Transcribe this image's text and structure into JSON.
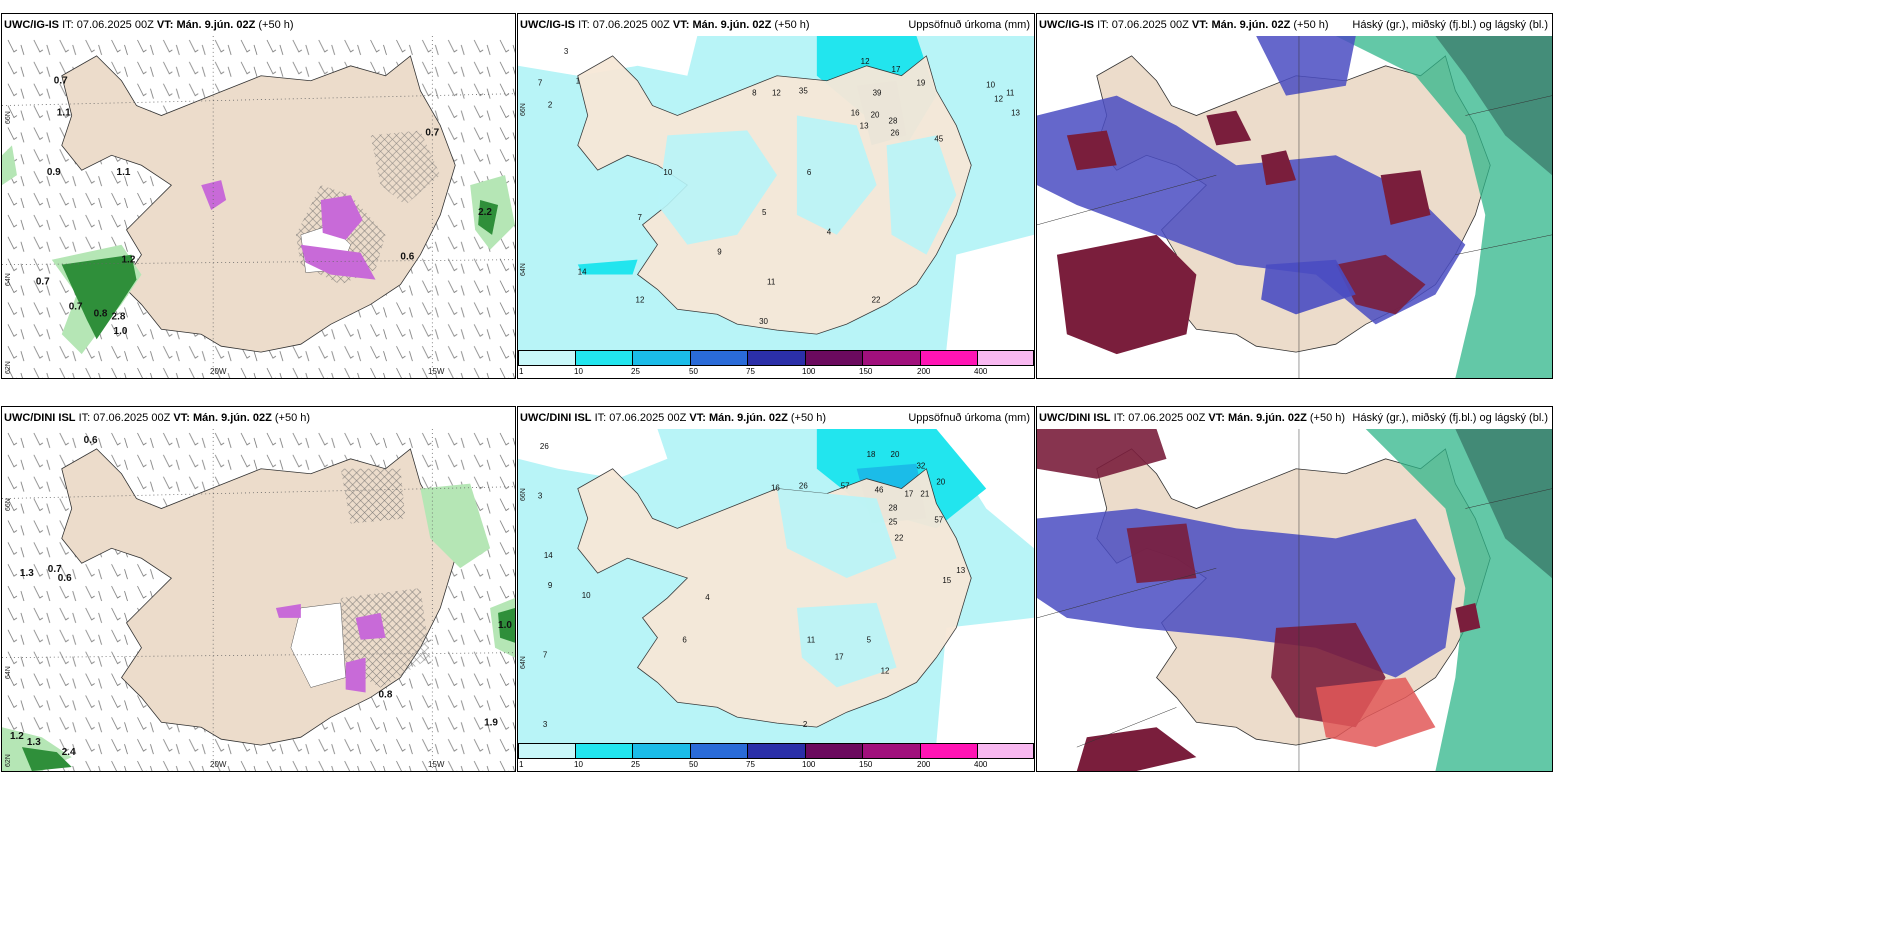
{
  "panels": [
    {
      "model": "UWC/IG-IS",
      "it_prefix": "IT:",
      "it": "07.06.2025 00Z",
      "vt_prefix": "VT:",
      "vt": "Mán. 9.jún. 02Z",
      "lead": "(+50 h)",
      "right_title": "",
      "grid_labels": {
        "lon_left": "20W",
        "lon_right": "15W",
        "lat_top": "66N",
        "lat_mid": "64N",
        "lat_bottom": "62N"
      },
      "values": [
        "0.7",
        "1.1",
        "1.2",
        "0.9",
        "0.7",
        "0.7",
        "1.1",
        "0.8",
        "2.8",
        "1.0",
        "0.7",
        "0.6",
        "2.2"
      ]
    },
    {
      "model": "UWC/IG-IS",
      "it_prefix": "IT:",
      "it": "07.06.2025 00Z",
      "vt_prefix": "VT:",
      "vt": "Mán. 9.jún. 02Z",
      "lead": "(+50 h)",
      "right_title": "Uppsöfnuð úrkoma (mm)",
      "grid_labels": {
        "lat_top": "66N",
        "lat_mid": "64N"
      },
      "values": [
        "3",
        "1",
        "7",
        "2",
        "8",
        "12",
        "35",
        "12",
        "17",
        "19",
        "39",
        "16",
        "20",
        "13",
        "28",
        "26",
        "45",
        "10",
        "11",
        "12",
        "13",
        "14",
        "10",
        "7",
        "5",
        "6",
        "4",
        "9",
        "11",
        "12",
        "22",
        "30"
      ],
      "colorbar": [
        "1",
        "10",
        "25",
        "50",
        "75",
        "100",
        "150",
        "200",
        "400"
      ]
    },
    {
      "model": "UWC/IG-IS",
      "it_prefix": "IT:",
      "it": "07.06.2025 00Z",
      "vt_prefix": "VT:",
      "vt": "Mán. 9.jún. 02Z",
      "lead": "(+50 h)",
      "right_title": "Háský (gr.), miðský (fj.bl.) og lágský (bl.)"
    },
    {
      "model": "UWC/DINI ISL",
      "it_prefix": "IT:",
      "it": "07.06.2025 00Z",
      "vt_prefix": "VT:",
      "vt": "Mán. 9.jún. 02Z",
      "lead": "(+50 h)",
      "right_title": "",
      "grid_labels": {
        "lon_left": "20W",
        "lon_right": "15W",
        "lat_top": "66N",
        "lat_mid": "64N",
        "lat_bottom": "62N"
      },
      "values": [
        "0.6",
        "1.3",
        "0.6",
        "0.7",
        "0.8",
        "1.2",
        "1.0",
        "1.9",
        "2.4",
        "1.3"
      ]
    },
    {
      "model": "UWC/DINI ISL",
      "it_prefix": "IT:",
      "it": "07.06.2025 00Z",
      "vt_prefix": "VT:",
      "vt": "Mán. 9.jún. 02Z",
      "lead": "(+50 h)",
      "right_title": "Uppsöfnuð úrkoma (mm)",
      "grid_labels": {
        "lat_top": "66N",
        "lat_mid": "64N"
      },
      "values": [
        "26",
        "14",
        "3",
        "18",
        "20",
        "32",
        "16",
        "26",
        "57",
        "46",
        "17",
        "21",
        "20",
        "28",
        "25",
        "57",
        "22",
        "13",
        "15",
        "10",
        "9",
        "7",
        "6",
        "5",
        "4",
        "11",
        "17",
        "12",
        "3",
        "2"
      ],
      "colorbar": [
        "1",
        "10",
        "25",
        "50",
        "75",
        "100",
        "150",
        "200",
        "400"
      ]
    },
    {
      "model": "UWC/DINI ISL",
      "it_prefix": "IT:",
      "it": "07.06.2025 00Z",
      "vt_prefix": "VT:",
      "vt": "Mán. 9.jún. 02Z",
      "lead": "(+50 h)",
      "right_title": "Háský (gr.), miðský (fj.bl.) og lágský (bl.)"
    }
  ],
  "colors": {
    "land": "#ecdccb",
    "precip_light": "#b8f4f7",
    "precip_mid": "#22e5ee",
    "precip_blue": "#1bbce8",
    "cloud_low": "#4a4cc2",
    "cloud_mid": "#7a1e3c",
    "cloud_high": "#20c48a",
    "wind_precip_green": "#2f8f3a",
    "wind_precip_pink": "#c86ad8"
  },
  "colorbar_colors": [
    "#c8f7f9",
    "#22e5ee",
    "#1bbce8",
    "#2a6bd8",
    "#2b2fa8",
    "#6b0a5e",
    "#a0107c",
    "#ff14b4",
    "#f8b8f0"
  ]
}
